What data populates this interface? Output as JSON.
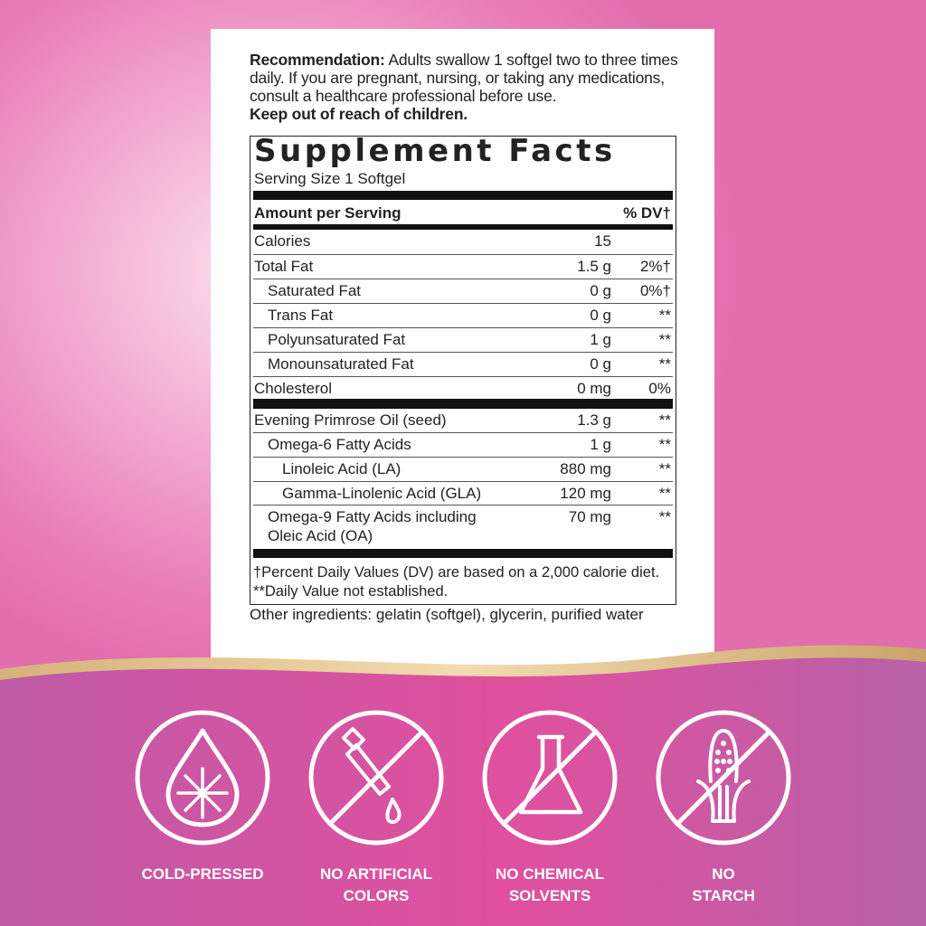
{
  "recommendation": {
    "label": "Recommendation:",
    "text": " Adults swallow 1 softgel two to three times daily. If you are pregnant, nursing, or taking any medications, consult a healthcare professional before use.",
    "warning": "Keep out of reach of children."
  },
  "facts": {
    "title": "Supplement Facts",
    "serving_size": "Serving Size 1 Softgel",
    "header": {
      "amount": "Amount per Serving",
      "dv": "% DV†"
    },
    "rows": [
      {
        "name": "Calories",
        "amount": "15",
        "dv": "",
        "indent": 0
      },
      {
        "name": "Total Fat",
        "amount": "1.5 g",
        "dv": "2%†",
        "indent": 0
      },
      {
        "name": "Saturated Fat",
        "amount": "0 g",
        "dv": "0%†",
        "indent": 1
      },
      {
        "name": "Trans Fat",
        "amount": "0 g",
        "dv": "**",
        "indent": 1
      },
      {
        "name": "Polyunsaturated Fat",
        "amount": "1 g",
        "dv": "**",
        "indent": 1
      },
      {
        "name": "Monounsaturated Fat",
        "amount": "0 g",
        "dv": "**",
        "indent": 1
      },
      {
        "name": "Cholesterol",
        "amount": "0 mg",
        "dv": "0%",
        "indent": 0
      },
      {
        "name": "Evening Primrose Oil (seed)",
        "amount": "1.3 g",
        "dv": "**",
        "indent": 0
      },
      {
        "name": "Omega-6 Fatty Acids",
        "amount": "1 g",
        "dv": "**",
        "indent": 1
      },
      {
        "name": "Linoleic Acid (LA)",
        "amount": "880 mg",
        "dv": "**",
        "indent": 2
      },
      {
        "name": "Gamma-Linolenic Acid (GLA)",
        "amount": "120 mg",
        "dv": "**",
        "indent": 2
      },
      {
        "name": "Omega-9 Fatty Acids including",
        "name2": "Oleic Acid (OA)",
        "amount": "70 mg",
        "dv": "**",
        "indent": 1
      }
    ],
    "footnote1": "†Percent Daily Values (DV) are based on a 2,000 calorie diet.",
    "footnote2": "**Daily Value not established."
  },
  "other_ingredients": "Other ingredients: gelatin (softgel), glycerin, purified water",
  "badges": [
    {
      "icon": "snowflake-drop-icon",
      "line1": "COLD-PRESSED",
      "line2": ""
    },
    {
      "icon": "no-dropper-icon",
      "line1": "NO ARTIFICIAL",
      "line2": "COLORS"
    },
    {
      "icon": "no-flask-icon",
      "line1": "NO CHEMICAL",
      "line2": "SOLVENTS"
    },
    {
      "icon": "no-corn-icon",
      "line1": "NO",
      "line2": "STARCH"
    }
  ],
  "colors": {
    "band_left": "#c05aa6",
    "band_center": "#e0509e",
    "gold": "#c9a46a"
  }
}
